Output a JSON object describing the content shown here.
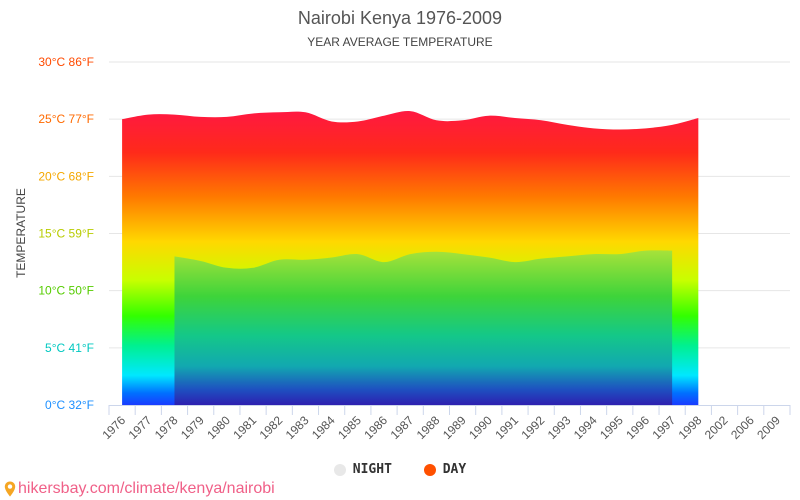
{
  "chart_data": {
    "type": "area",
    "title": "Nairobi Kenya 1976-2009",
    "subtitle": "YEAR AVERAGE TEMPERATURE",
    "ylabel": "TEMPERATURE",
    "xlabel": "",
    "ylim": [
      0,
      30
    ],
    "grid": true,
    "legend_position": "bottom",
    "y_ticks": [
      {
        "value": 30,
        "label": "30°C 86°F",
        "color": "#ff4a00"
      },
      {
        "value": 25,
        "label": "25°C 77°F",
        "color": "#ff6a00"
      },
      {
        "value": 20,
        "label": "20°C 68°F",
        "color": "#f5a800"
      },
      {
        "value": 15,
        "label": "15°C 59°F",
        "color": "#b8cc00"
      },
      {
        "value": 10,
        "label": "10°C 50°F",
        "color": "#55cc00"
      },
      {
        "value": 5,
        "label": "5°C 41°F",
        "color": "#00c8c0"
      },
      {
        "value": 0,
        "label": "0°C 32°F",
        "color": "#1e90ff"
      }
    ],
    "categories": [
      "1976",
      "1977",
      "1978",
      "1979",
      "1980",
      "1981",
      "1982",
      "1983",
      "1984",
      "1985",
      "1986",
      "1987",
      "1988",
      "1989",
      "1990",
      "1991",
      "1992",
      "1993",
      "1994",
      "1995",
      "1996",
      "1997",
      "1998",
      "2002",
      "2006",
      "2009"
    ],
    "series": [
      {
        "name": "NIGHT",
        "color": "#e8e8e8",
        "values": [
          null,
          null,
          13.0,
          12.6,
          12.0,
          12.0,
          12.7,
          12.7,
          12.9,
          13.2,
          12.5,
          13.2,
          13.4,
          13.2,
          12.9,
          12.5,
          12.8,
          13.0,
          13.2,
          13.2,
          13.5,
          13.5,
          null,
          null,
          null,
          null
        ]
      },
      {
        "name": "DAY",
        "color": "#ff5000",
        "values": [
          25.0,
          25.4,
          25.4,
          25.2,
          25.2,
          25.5,
          25.6,
          25.6,
          24.8,
          24.8,
          25.3,
          25.7,
          24.9,
          24.9,
          25.3,
          25.1,
          24.9,
          24.5,
          24.2,
          24.1,
          24.2,
          24.5,
          25.1,
          null,
          null,
          null
        ]
      }
    ]
  },
  "source": "hikersbay.com/climate/kenya/nairobi"
}
